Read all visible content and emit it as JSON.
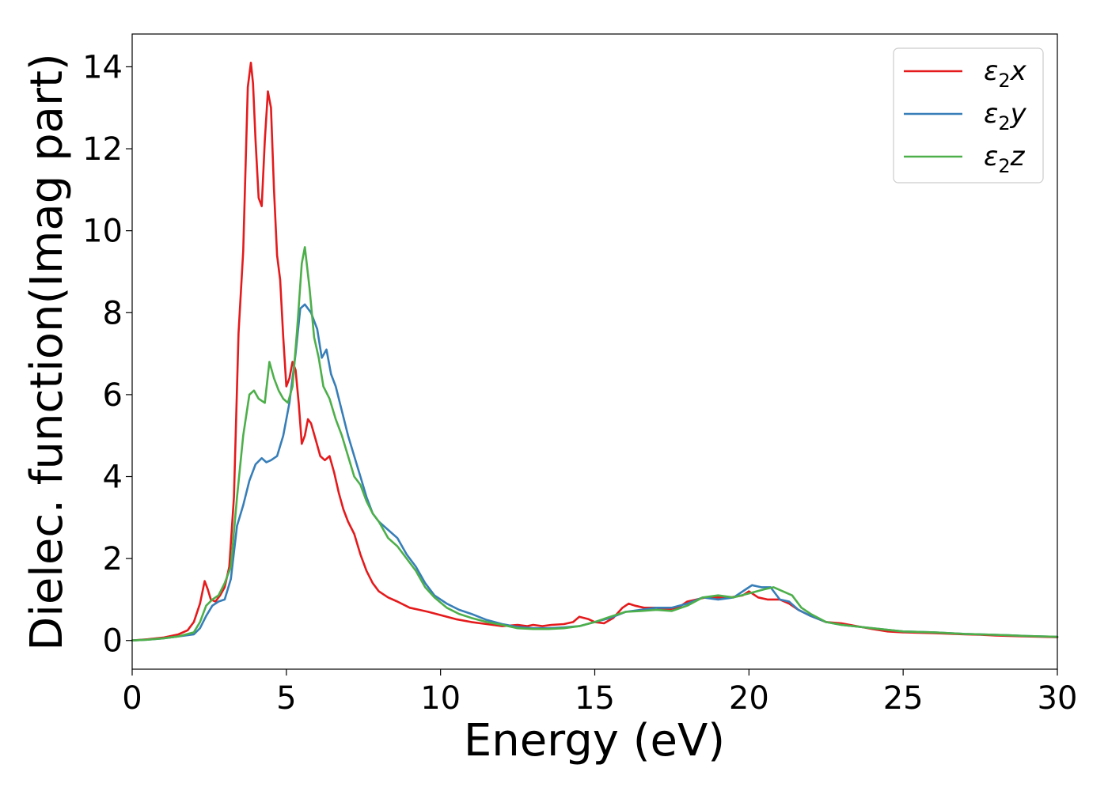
{
  "chart_data": {
    "type": "line",
    "xlabel": "Energy (eV)",
    "ylabel": "Dielec. function(Imag part)",
    "xlim": [
      0,
      30
    ],
    "ylim": [
      -0.7,
      14.8
    ],
    "xticks": [
      0,
      5,
      10,
      15,
      20,
      25,
      30
    ],
    "yticks": [
      0,
      2,
      4,
      6,
      8,
      10,
      12,
      14
    ],
    "grid": false,
    "legend_position": "upper right",
    "series": [
      {
        "name": "ε2x",
        "legend": {
          "base": "ε",
          "sub": "2",
          "suffix": "x"
        },
        "color": "#e41a1c",
        "x": [
          0,
          0.5,
          1.0,
          1.5,
          1.8,
          2.0,
          2.2,
          2.35,
          2.45,
          2.55,
          2.7,
          2.85,
          3.0,
          3.15,
          3.3,
          3.45,
          3.6,
          3.75,
          3.85,
          3.92,
          4.0,
          4.1,
          4.2,
          4.3,
          4.4,
          4.5,
          4.6,
          4.7,
          4.8,
          4.9,
          5.0,
          5.1,
          5.2,
          5.3,
          5.4,
          5.5,
          5.6,
          5.7,
          5.8,
          5.95,
          6.1,
          6.25,
          6.4,
          6.55,
          6.7,
          6.85,
          7.0,
          7.2,
          7.4,
          7.6,
          7.8,
          8.0,
          8.3,
          8.6,
          9.0,
          9.3,
          9.6,
          10.0,
          10.5,
          11.0,
          11.5,
          12.0,
          12.5,
          12.8,
          13.0,
          13.3,
          13.6,
          14.0,
          14.3,
          14.5,
          14.8,
          15.0,
          15.3,
          15.6,
          15.9,
          16.1,
          16.3,
          16.6,
          17.0,
          17.3,
          17.7,
          18.0,
          18.3,
          18.6,
          19.0,
          19.4,
          19.8,
          20.0,
          20.3,
          20.6,
          21.0,
          21.3,
          21.6,
          22.0,
          22.5,
          23.0,
          23.5,
          24.0,
          24.5,
          25.0,
          26.0,
          27.0,
          27.5,
          28.0,
          29.0,
          30.0
        ],
        "y": [
          0.0,
          0.03,
          0.07,
          0.15,
          0.25,
          0.45,
          0.9,
          1.45,
          1.25,
          1.0,
          0.95,
          1.1,
          1.3,
          1.8,
          3.5,
          7.5,
          9.5,
          13.5,
          14.1,
          13.6,
          12.2,
          10.8,
          10.6,
          12.2,
          13.4,
          13.0,
          11.0,
          9.4,
          8.8,
          7.4,
          6.2,
          6.4,
          6.8,
          6.6,
          5.8,
          4.8,
          5.0,
          5.4,
          5.3,
          4.9,
          4.5,
          4.4,
          4.5,
          4.1,
          3.6,
          3.2,
          2.9,
          2.6,
          2.1,
          1.7,
          1.4,
          1.2,
          1.05,
          0.95,
          0.8,
          0.75,
          0.7,
          0.62,
          0.52,
          0.45,
          0.4,
          0.35,
          0.38,
          0.35,
          0.38,
          0.35,
          0.38,
          0.4,
          0.45,
          0.58,
          0.52,
          0.45,
          0.42,
          0.55,
          0.8,
          0.9,
          0.85,
          0.8,
          0.8,
          0.75,
          0.8,
          0.95,
          1.0,
          1.05,
          1.05,
          1.05,
          1.1,
          1.2,
          1.05,
          1.0,
          1.0,
          0.9,
          0.75,
          0.6,
          0.45,
          0.42,
          0.35,
          0.28,
          0.22,
          0.2,
          0.18,
          0.15,
          0.14,
          0.12,
          0.1,
          0.08
        ]
      },
      {
        "name": "ε2y",
        "legend": {
          "base": "ε",
          "sub": "2",
          "suffix": "y"
        },
        "color": "#377eb8",
        "x": [
          0,
          0.5,
          1.0,
          1.5,
          2.0,
          2.2,
          2.4,
          2.6,
          2.8,
          3.0,
          3.2,
          3.4,
          3.6,
          3.8,
          4.0,
          4.2,
          4.35,
          4.5,
          4.7,
          4.9,
          5.1,
          5.3,
          5.45,
          5.6,
          5.8,
          6.0,
          6.15,
          6.3,
          6.45,
          6.6,
          6.8,
          7.0,
          7.2,
          7.4,
          7.6,
          7.8,
          8.0,
          8.3,
          8.6,
          8.9,
          9.2,
          9.5,
          9.8,
          10.2,
          10.6,
          11.0,
          11.5,
          12.0,
          12.5,
          13.0,
          13.5,
          14.0,
          14.5,
          15.0,
          15.5,
          16.0,
          16.5,
          17.0,
          17.5,
          18.0,
          18.5,
          19.0,
          19.5,
          19.9,
          20.1,
          20.4,
          20.7,
          21.0,
          21.3,
          21.6,
          22.0,
          22.5,
          23.0,
          24.0,
          25.0,
          26.0,
          27.0,
          28.0,
          29.0,
          30.0
        ],
        "y": [
          0.0,
          0.02,
          0.05,
          0.1,
          0.15,
          0.3,
          0.6,
          0.85,
          0.95,
          1.0,
          1.5,
          2.8,
          3.3,
          3.9,
          4.3,
          4.45,
          4.35,
          4.4,
          4.5,
          5.0,
          5.8,
          7.0,
          8.1,
          8.2,
          8.0,
          7.6,
          6.9,
          7.1,
          6.5,
          6.2,
          5.6,
          5.0,
          4.5,
          4.0,
          3.5,
          3.1,
          2.9,
          2.7,
          2.5,
          2.1,
          1.8,
          1.4,
          1.1,
          0.9,
          0.75,
          0.65,
          0.5,
          0.4,
          0.33,
          0.3,
          0.3,
          0.32,
          0.35,
          0.45,
          0.55,
          0.7,
          0.75,
          0.8,
          0.8,
          0.9,
          1.05,
          1.0,
          1.05,
          1.25,
          1.35,
          1.3,
          1.3,
          1.0,
          0.95,
          0.75,
          0.6,
          0.45,
          0.38,
          0.3,
          0.22,
          0.2,
          0.16,
          0.14,
          0.11,
          0.09
        ]
      },
      {
        "name": "ε2z",
        "legend": {
          "base": "ε",
          "sub": "2",
          "suffix": "z"
        },
        "color": "#4daf4a",
        "x": [
          0,
          0.5,
          1.0,
          1.5,
          2.0,
          2.2,
          2.4,
          2.6,
          2.8,
          3.0,
          3.2,
          3.4,
          3.6,
          3.8,
          3.95,
          4.1,
          4.3,
          4.45,
          4.6,
          4.75,
          4.9,
          5.05,
          5.2,
          5.35,
          5.5,
          5.6,
          5.75,
          5.9,
          6.05,
          6.2,
          6.4,
          6.6,
          6.8,
          7.0,
          7.2,
          7.4,
          7.6,
          7.8,
          8.0,
          8.3,
          8.6,
          8.9,
          9.2,
          9.5,
          9.8,
          10.2,
          10.6,
          11.0,
          11.5,
          12.0,
          12.5,
          13.0,
          13.5,
          14.0,
          14.5,
          15.0,
          15.5,
          16.0,
          16.5,
          17.0,
          17.5,
          18.0,
          18.5,
          19.0,
          19.5,
          20.0,
          20.5,
          20.8,
          21.1,
          21.4,
          21.7,
          22.0,
          22.5,
          23.0,
          24.0,
          25.0,
          26.0,
          27.0,
          28.0,
          29.0,
          30.0
        ],
        "y": [
          0.0,
          0.02,
          0.05,
          0.1,
          0.2,
          0.45,
          0.85,
          1.0,
          1.1,
          1.4,
          1.8,
          3.5,
          5.0,
          6.0,
          6.1,
          5.9,
          5.8,
          6.8,
          6.4,
          6.1,
          5.9,
          5.8,
          6.2,
          7.6,
          9.2,
          9.6,
          8.6,
          7.4,
          6.9,
          6.2,
          5.9,
          5.4,
          5.0,
          4.5,
          4.0,
          3.8,
          3.4,
          3.1,
          2.9,
          2.5,
          2.3,
          2.0,
          1.7,
          1.3,
          1.05,
          0.8,
          0.65,
          0.55,
          0.45,
          0.38,
          0.3,
          0.28,
          0.28,
          0.3,
          0.35,
          0.45,
          0.58,
          0.7,
          0.72,
          0.75,
          0.72,
          0.85,
          1.05,
          1.1,
          1.05,
          1.15,
          1.25,
          1.3,
          1.2,
          1.1,
          0.8,
          0.65,
          0.45,
          0.38,
          0.3,
          0.22,
          0.2,
          0.16,
          0.14,
          0.11,
          0.09
        ]
      }
    ]
  }
}
